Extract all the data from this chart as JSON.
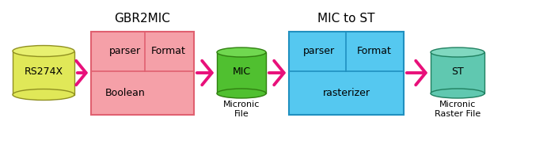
{
  "bg_color": "#ffffff",
  "gbr2mic_title": "GBR2MIC",
  "mic2st_title": "MIC to ST",
  "rs274x_label": "RS274X",
  "mic_label": "MIC",
  "st_label": "ST",
  "mic_sublabel": "Micronic\nFile",
  "st_sublabel": "Micronic\nRaster File",
  "gbr2mic_box_color": "#f5a0a8",
  "gbr2mic_box_border": "#e06070",
  "mic2st_box_color": "#55c8f0",
  "mic2st_box_border": "#2090c0",
  "rs274x_cyl_color": "#e0e858",
  "rs274x_cyl_border": "#909020",
  "rs274x_cyl_top": "#e8f070",
  "mic_cyl_color": "#50c030",
  "mic_cyl_border": "#308010",
  "mic_cyl_top": "#70d850",
  "st_cyl_color": "#60c8b0",
  "st_cyl_border": "#208060",
  "st_cyl_top": "#80d8c0",
  "arrow_color": "#e8107a",
  "text_color": "#000000",
  "title_fontsize": 11,
  "label_fontsize": 8,
  "cell_fontsize": 9
}
